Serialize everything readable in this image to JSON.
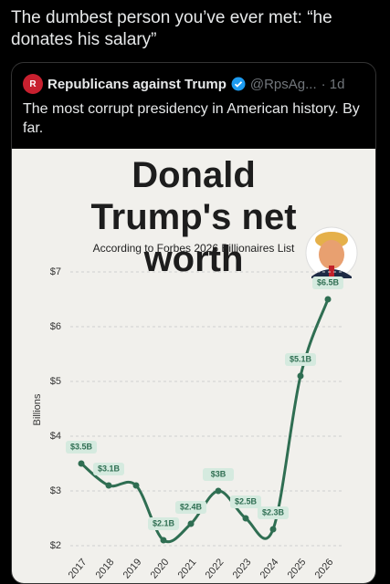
{
  "post": {
    "text": "The dumbest person you’ve ever met: “he donates his salary”"
  },
  "quoted_post": {
    "author": "Republicans against Trump",
    "handle": "@RpsAg...",
    "time": "· 1d",
    "text": "The most corrupt presidency in American history. By far."
  },
  "chart_data": {
    "type": "line",
    "title": "Donald Trump's net worth",
    "subtitle": "According to Forbes 2026 Billionaires List",
    "ylabel": "Billions",
    "categories": [
      "2017",
      "2018",
      "2019",
      "2020",
      "2021",
      "2022",
      "2023",
      "2024",
      "2025",
      "2026"
    ],
    "values": [
      3.5,
      3.1,
      3.1,
      2.1,
      2.4,
      3,
      2.5,
      2.3,
      5.1,
      6.5
    ],
    "value_labels": [
      "$3.5B",
      "$3.1B",
      null,
      "$2.1B",
      "$2.4B",
      "$3B",
      "$2.5B",
      "$2.3B",
      "$5.1B",
      "$6.5B"
    ],
    "color": "#2f6e52",
    "ylim": [
      2,
      7
    ],
    "yticks": [
      {
        "value": 2,
        "label": "$2"
      },
      {
        "value": 3,
        "label": "$3"
      },
      {
        "value": 4,
        "label": "$4"
      },
      {
        "value": 5,
        "label": "$5"
      },
      {
        "value": 6,
        "label": "$6"
      },
      {
        "value": 7,
        "label": "$7"
      }
    ],
    "grid": true
  }
}
